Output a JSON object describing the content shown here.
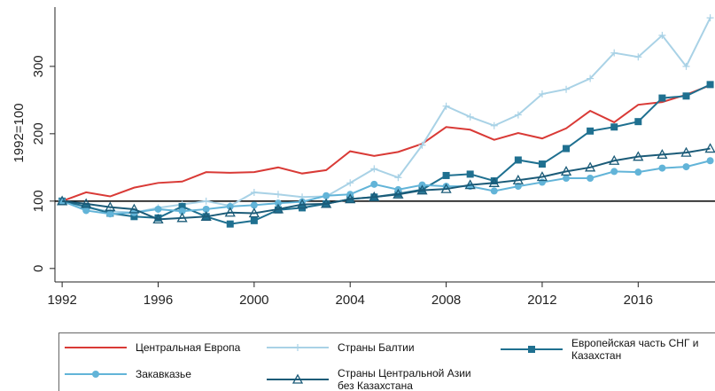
{
  "chart_data": {
    "type": "line",
    "ylabel": "1992=100",
    "x": [
      1992,
      1993,
      1994,
      1995,
      1996,
      1997,
      1998,
      1999,
      2000,
      2001,
      2002,
      2003,
      2004,
      2005,
      2006,
      2007,
      2008,
      2009,
      2010,
      2011,
      2012,
      2013,
      2014,
      2015,
      2016,
      2017,
      2018,
      2019
    ],
    "xlim": [
      1991.7,
      2019.2
    ],
    "xticks": [
      1992,
      1996,
      2000,
      2004,
      2008,
      2012,
      2016
    ],
    "ylim": [
      -20,
      388
    ],
    "yticks": [
      0,
      100,
      200,
      300
    ],
    "reference_line": 100,
    "series": [
      {
        "name": "Центральная Европа",
        "color": "#d93a36",
        "marker": "none",
        "values": [
          100,
          113,
          107,
          120,
          127,
          129,
          143,
          142,
          143,
          150,
          141,
          146,
          174,
          167,
          173,
          185,
          210,
          206,
          191,
          201,
          193,
          208,
          234,
          217,
          243,
          247,
          258,
          272
        ]
      },
      {
        "name": "Страны Балтии",
        "color": "#a9d2e6",
        "marker": "plus",
        "values": [
          100,
          90,
          85,
          83,
          90,
          95,
          100,
          93,
          113,
          110,
          106,
          107,
          127,
          148,
          135,
          183,
          241,
          225,
          212,
          228,
          259,
          266,
          282,
          320,
          314,
          346,
          300,
          372
        ]
      },
      {
        "name": "Европейская часть СНГ и Казахстан",
        "color": "#1f7090",
        "marker": "square",
        "values": [
          100,
          92,
          82,
          77,
          75,
          92,
          77,
          66,
          71,
          87,
          90,
          96,
          103,
          106,
          111,
          117,
          138,
          140,
          130,
          161,
          155,
          178,
          204,
          210,
          218,
          253,
          256,
          273
        ]
      },
      {
        "name": "Закавказье",
        "color": "#62b4d8",
        "marker": "circle",
        "values": [
          100,
          86,
          81,
          83,
          88,
          85,
          88,
          92,
          94,
          97,
          99,
          108,
          110,
          125,
          117,
          124,
          122,
          122,
          115,
          122,
          128,
          134,
          134,
          144,
          143,
          149,
          151,
          160
        ]
      },
      {
        "name": "Страны Центральной Азии без Казахстана",
        "color": "#1b5b78",
        "marker": "triangle",
        "values": [
          100,
          96,
          91,
          88,
          73,
          75,
          77,
          83,
          82,
          88,
          95,
          96,
          103,
          106,
          110,
          116,
          118,
          124,
          127,
          131,
          136,
          144,
          150,
          160,
          166,
          169,
          172,
          178
        ]
      }
    ]
  }
}
